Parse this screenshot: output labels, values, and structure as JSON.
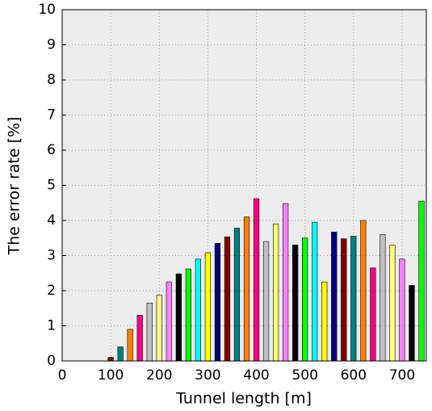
{
  "chart_data": {
    "type": "bar",
    "x_label": "Tunnel length [m]",
    "y_label": "The error rate [%]",
    "x": [
      100,
      120,
      140,
      160,
      180,
      200,
      220,
      240,
      260,
      280,
      300,
      320,
      340,
      360,
      380,
      400,
      420,
      440,
      460,
      480,
      500,
      520,
      540,
      560,
      580,
      600,
      620,
      640,
      660,
      680,
      700,
      720,
      740
    ],
    "values": [
      0.1,
      0.4,
      0.9,
      1.3,
      1.65,
      1.87,
      2.25,
      2.48,
      2.62,
      2.9,
      3.08,
      3.35,
      3.53,
      3.78,
      4.1,
      4.62,
      3.4,
      3.9,
      4.48,
      3.3,
      3.5,
      3.95,
      2.25,
      3.67,
      3.48,
      3.55,
      4.0,
      2.65,
      3.6,
      3.3,
      2.9,
      2.15,
      4.55
    ],
    "colors": [
      "#800000",
      "#008080",
      "#ff8000",
      "#ff0080",
      "#c0c0c0",
      "#ffff80",
      "#ff80ff",
      "#000000",
      "#00ff00",
      "#00ffff",
      "#ffff00",
      "#000080",
      "#800000",
      "#008080",
      "#ff8000",
      "#ff0080",
      "#c0c0c0",
      "#ffff80",
      "#ff80ff",
      "#000000",
      "#00ff00",
      "#00ffff",
      "#ffff00",
      "#000080",
      "#800000",
      "#008080",
      "#ff8000",
      "#ff0080",
      "#c0c0c0",
      "#ffff80",
      "#ff80ff",
      "#000000",
      "#00ff00"
    ],
    "bar_width": 11,
    "xlim": [
      0,
      750
    ],
    "ylim": [
      0,
      10
    ],
    "xticks": [
      0,
      100,
      200,
      300,
      400,
      500,
      600,
      700
    ],
    "yticks": [
      0,
      1,
      2,
      3,
      4,
      5,
      6,
      7,
      8,
      9,
      10
    ],
    "grid": true
  }
}
